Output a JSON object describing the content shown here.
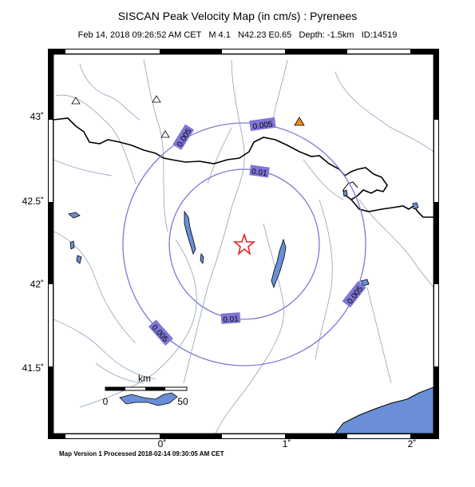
{
  "header": {
    "title": "SISCAN Peak Velocity Map (in cm/s) : Pyrenees",
    "event": "Feb 14, 2018 09:26:52 AM CET   M 4.1   N42.23 E0.65   Depth: -1.5km   ID:14519"
  },
  "footer": {
    "processed": "Map Version 1 Processed 2018-02-14 09:30:05 AM CET"
  },
  "axes": {
    "lat_labels": [
      "43˚",
      "42.5˚",
      "42˚",
      "41.5˚"
    ],
    "lon_labels": [
      "0˚",
      "1˚",
      "2˚"
    ]
  },
  "contours": {
    "outer_label": "0.005",
    "inner_label": "0.01",
    "color": "#7f77d6"
  },
  "scale_bar": {
    "unit": "km",
    "start": "0",
    "end": "50"
  },
  "epicenter": {
    "marker": "star-icon",
    "color": "#e8202a"
  },
  "stations": {
    "triangle_icons": [
      "station-triangle-icon"
    ],
    "highlight_color": "#f08c1e"
  },
  "colors": {
    "sea": "#6a8fd6",
    "frame": "#000000",
    "rivers": "#8fa3bd"
  }
}
